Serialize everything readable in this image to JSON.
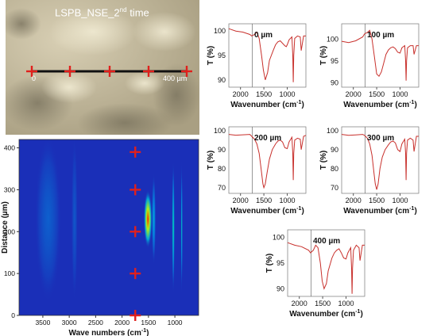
{
  "micrograph": {
    "title": "LSPB_NSE_2",
    "title_sup": "nd",
    "title_tail": " time",
    "start_label": "0",
    "end_label": "400 µm"
  },
  "colors": {
    "spectrum_line": "#c8302c",
    "marker": "#e0201c",
    "heatmap_low": "#1a2fb8",
    "heatmap_high": "#ff2000"
  },
  "chart_data": [
    {
      "type": "heatmap",
      "xlabel_pre": "Wave numbers (cm",
      "xlabel_sup": "-1",
      "xlabel_post": ")",
      "ylabel": "Distance (µm)",
      "xlim": [
        3950,
        550
      ],
      "ylim": [
        0,
        420
      ],
      "x_ticks": [
        3500,
        3000,
        2500,
        2000,
        1500,
        1000
      ],
      "y_ticks": [
        0,
        100,
        200,
        300,
        400
      ],
      "x_reversed": true,
      "bands": [
        {
          "center": 1510,
          "width": 80,
          "peak": 1.0,
          "profile_center": 230,
          "profile_width": 70
        },
        {
          "center": 1030,
          "width": 25,
          "peak": 0.45,
          "profile_center": 210,
          "profile_width": 160
        },
        {
          "center": 870,
          "width": 15,
          "peak": 0.4,
          "profile_center": 210,
          "profile_width": 160
        },
        {
          "center": 1400,
          "width": 40,
          "peak": 0.3,
          "profile_center": 230,
          "profile_width": 110
        },
        {
          "center": 3400,
          "width": 250,
          "peak": 0.12,
          "profile_center": 230,
          "profile_width": 200
        },
        {
          "center": 2900,
          "width": 60,
          "peak": 0.1,
          "profile_center": 230,
          "profile_width": 200
        }
      ],
      "markers_x": 1750,
      "markers_y": [
        0,
        100,
        200,
        300,
        390
      ]
    },
    {
      "type": "line",
      "label": "0 µm",
      "ylabel": "T (%)",
      "xlabel_pre": "Wavenumber (cm",
      "xlabel_sup": "-1",
      "xlabel_post": ")",
      "xlim": [
        2250,
        600
      ],
      "ylim": [
        88.5,
        101.5
      ],
      "y_ticks": [
        90,
        95,
        100
      ],
      "x_ticks": [
        2000,
        1500,
        1000
      ],
      "vline": 1750,
      "x": [
        2250,
        2100,
        1950,
        1800,
        1760,
        1700,
        1650,
        1600,
        1550,
        1510,
        1470,
        1420,
        1380,
        1300,
        1250,
        1200,
        1150,
        1100,
        1050,
        1020,
        1000,
        960,
        900,
        880,
        870,
        860,
        840,
        780,
        720,
        700,
        650,
        600
      ],
      "y": [
        100.5,
        100.0,
        99.8,
        99.3,
        99.0,
        99.3,
        99.8,
        98.5,
        95.0,
        92.0,
        90.0,
        91.5,
        94.0,
        96.0,
        97.2,
        97.8,
        98.0,
        97.5,
        97.0,
        96.8,
        97.2,
        98.2,
        98.8,
        95.0,
        89.5,
        95.0,
        98.5,
        99.0,
        98.8,
        96.0,
        99.0,
        99.0
      ]
    },
    {
      "type": "line",
      "label": "100 µm",
      "ylabel": "T (%)",
      "xlabel_pre": "Wavenumber (cm",
      "xlabel_sup": "-1",
      "xlabel_post": ")",
      "xlim": [
        2250,
        600
      ],
      "ylim": [
        89.0,
        103.5
      ],
      "y_ticks": [
        90,
        95,
        100
      ],
      "x_ticks": [
        2000,
        1500,
        1000
      ],
      "vline": 1750,
      "x": [
        2250,
        2100,
        1950,
        1800,
        1760,
        1700,
        1650,
        1600,
        1550,
        1500,
        1450,
        1400,
        1350,
        1300,
        1250,
        1200,
        1150,
        1100,
        1050,
        1000,
        960,
        900,
        880,
        870,
        860,
        840,
        780,
        720,
        700,
        650,
        600
      ],
      "y": [
        99.5,
        99.2,
        99.6,
        100.5,
        101.2,
        101.5,
        102.0,
        100.0,
        96.0,
        92.0,
        91.5,
        92.5,
        94.5,
        96.5,
        97.5,
        98.0,
        98.2,
        97.8,
        97.0,
        96.8,
        98.0,
        98.5,
        95.0,
        90.5,
        95.0,
        98.0,
        98.5,
        98.5,
        96.5,
        98.5,
        98.5
      ]
    },
    {
      "type": "line",
      "label": "200 µm",
      "ylabel": "T (%)",
      "xlabel_pre": "Wavenumber (cm",
      "xlabel_sup": "-1",
      "xlabel_post": ")",
      "xlim": [
        2250,
        600
      ],
      "ylim": [
        67.0,
        102.0
      ],
      "y_ticks": [
        70,
        80,
        90,
        100
      ],
      "x_ticks": [
        2000,
        1500,
        1000
      ],
      "vline": 1750,
      "x": [
        2250,
        2100,
        1950,
        1800,
        1760,
        1700,
        1650,
        1600,
        1560,
        1520,
        1500,
        1470,
        1430,
        1380,
        1320,
        1250,
        1200,
        1150,
        1100,
        1050,
        1000,
        960,
        900,
        880,
        870,
        860,
        840,
        780,
        720,
        700,
        650,
        600
      ],
      "y": [
        98.0,
        97.6,
        97.8,
        98.0,
        97.0,
        95.5,
        93.0,
        88.0,
        80.0,
        72.0,
        70.0,
        72.0,
        78.0,
        85.0,
        90.0,
        93.0,
        94.5,
        95.0,
        94.0,
        91.0,
        90.5,
        94.0,
        96.5,
        88.0,
        74.0,
        88.0,
        95.0,
        96.0,
        95.5,
        90.0,
        97.0,
        97.5
      ]
    },
    {
      "type": "line",
      "label": "300 µm",
      "ylabel": "T (%)",
      "xlabel_pre": "Wavenumber (cm",
      "xlabel_sup": "-1",
      "xlabel_post": ")",
      "xlim": [
        2250,
        600
      ],
      "ylim": [
        67.0,
        102.0
      ],
      "y_ticks": [
        70,
        80,
        90,
        100
      ],
      "x_ticks": [
        2000,
        1500,
        1000
      ],
      "vline": 1750,
      "x": [
        2250,
        2100,
        1950,
        1800,
        1760,
        1700,
        1650,
        1600,
        1560,
        1530,
        1500,
        1470,
        1430,
        1380,
        1320,
        1250,
        1200,
        1150,
        1100,
        1050,
        1000,
        960,
        900,
        880,
        870,
        860,
        840,
        780,
        720,
        700,
        650,
        600
      ],
      "y": [
        98.0,
        97.5,
        97.7,
        98.0,
        97.5,
        96.0,
        93.0,
        87.0,
        78.0,
        72.0,
        69.0,
        72.0,
        80.0,
        86.0,
        90.0,
        92.5,
        94.0,
        94.5,
        93.5,
        90.0,
        89.0,
        93.0,
        95.5,
        88.0,
        74.0,
        88.0,
        95.0,
        96.0,
        95.0,
        89.0,
        97.0,
        97.0
      ]
    },
    {
      "type": "line",
      "label": "400 µm",
      "ylabel": "T (%)",
      "xlabel_pre": "Wavenumber (cm",
      "xlabel_sup": "-1",
      "xlabel_post": ")",
      "xlim": [
        2250,
        600
      ],
      "ylim": [
        88.5,
        101.5
      ],
      "y_ticks": [
        90,
        95,
        100
      ],
      "x_ticks": [
        2000,
        1500,
        1000
      ],
      "vline": 1750,
      "x": [
        2250,
        2100,
        1950,
        1800,
        1760,
        1700,
        1650,
        1600,
        1550,
        1510,
        1470,
        1420,
        1380,
        1300,
        1250,
        1200,
        1150,
        1100,
        1050,
        1000,
        960,
        900,
        880,
        870,
        860,
        840,
        780,
        720,
        700,
        650,
        600
      ],
      "y": [
        99.0,
        98.5,
        98.2,
        97.5,
        97.0,
        97.5,
        98.5,
        98.0,
        95.0,
        91.5,
        90.0,
        91.0,
        93.5,
        96.0,
        97.0,
        97.5,
        97.8,
        97.0,
        96.0,
        95.8,
        97.0,
        98.0,
        94.0,
        89.0,
        94.0,
        97.5,
        98.5,
        98.0,
        95.5,
        98.5,
        98.5
      ]
    }
  ]
}
